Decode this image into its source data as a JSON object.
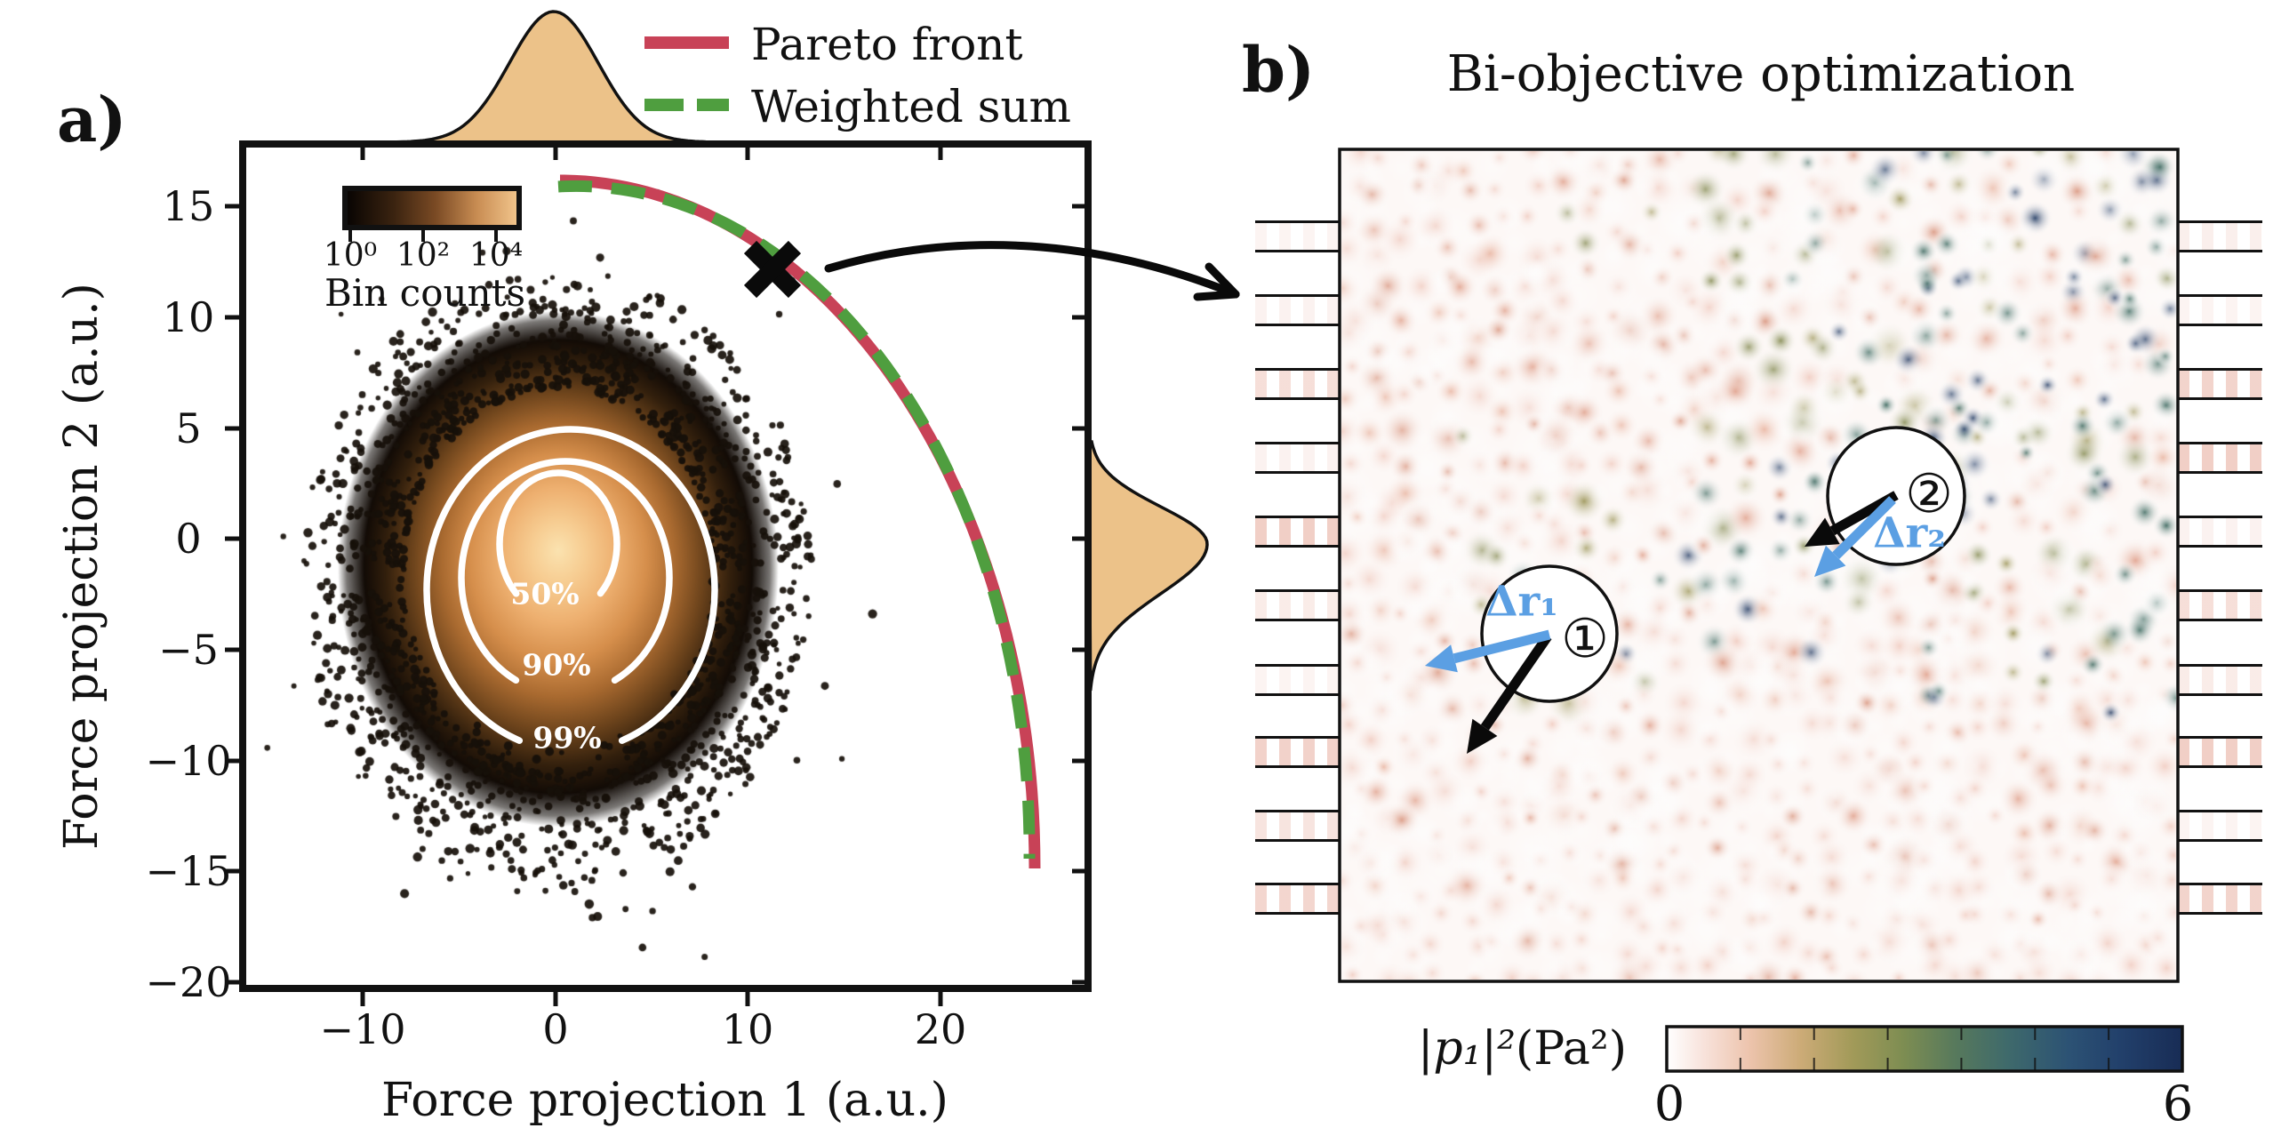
{
  "figure": {
    "panel_a": {
      "panel_label": "a)",
      "legend": {
        "items": [
          {
            "label": "Pareto front",
            "color": "#c84257",
            "style": "solid"
          },
          {
            "label": "Weighted sum",
            "color": "#4f9e3f",
            "style": "dashed"
          }
        ]
      },
      "inset_colorbar": {
        "tick_labels": [
          "10⁰",
          "10²",
          "10⁴"
        ],
        "label": "Bin counts"
      },
      "contour_labels": [
        "50%",
        "90%",
        "99%"
      ],
      "x_axis": {
        "label": "Force projection 1 (a.u.)",
        "tick_labels": [
          "−10",
          "0",
          "10",
          "20"
        ]
      },
      "y_axis": {
        "label": "Force projection 2 (a.u.)",
        "tick_labels": [
          "15",
          "10",
          "5",
          "0",
          "−5",
          "−10",
          "−15",
          "−20"
        ]
      }
    },
    "panel_b": {
      "panel_label": "b)",
      "title": "Bi-objective optimization",
      "trap_1": {
        "number": "①",
        "displacement_label": "Δr₁"
      },
      "trap_2": {
        "number": "②",
        "displacement_label": "Δr₂"
      },
      "colorbar": {
        "label_math": "|p₁|²",
        "label_unit": "(Pa²)",
        "min": "0",
        "max": "6"
      }
    },
    "colors": {
      "pareto_red": "#c84257",
      "weighted_green": "#4f9e3f",
      "marginal_tan": "#ecc289",
      "arrow_blue": "#5b9fe3",
      "contour_white": "#ffffff",
      "ink": "#111111"
    }
  },
  "chart_data": [
    {
      "type": "scatter",
      "panel": "a",
      "xlabel": "Force projection 1 (a.u.)",
      "ylabel": "Force projection 2 (a.u.)",
      "xlim": [
        -16.3,
        27.7
      ],
      "ylim": [
        -20.3,
        17.6
      ],
      "x_ticks": [
        -10,
        0,
        10,
        20
      ],
      "y_ticks": [
        15,
        10,
        5,
        0,
        -5,
        -10,
        -15,
        -20
      ],
      "grid": false,
      "legend_position": "upper center (outside axes)",
      "density_cloud": {
        "description": "log-scaled 2D histogram of force projections",
        "center": [
          0,
          -1
        ],
        "x_extent": [
          -12.5,
          12.5
        ],
        "y_extent": [
          -17,
          8.5
        ],
        "contour_levels_pct": [
          50,
          90,
          99
        ],
        "bin_count_scale": {
          "label": "Bin counts",
          "scale": "log",
          "ticks": [
            1,
            100,
            10000
          ]
        }
      },
      "series": [
        {
          "name": "Pareto front",
          "style": "solid",
          "color": "#c84257",
          "points": [
            [
              0.2,
              16.1
            ],
            [
              6.6,
              15.0
            ],
            [
              12.6,
              11.9
            ],
            [
              17.7,
              7.7
            ],
            [
              21.6,
              2.5
            ],
            [
              24.1,
              -3.9
            ],
            [
              25.0,
              -15.0
            ]
          ]
        },
        {
          "name": "Weighted sum",
          "style": "dashed",
          "color": "#4f9e3f",
          "points": [
            [
              0.2,
              15.5
            ],
            [
              6.3,
              14.4
            ],
            [
              12.0,
              11.0
            ],
            [
              16.9,
              6.9
            ],
            [
              20.7,
              1.6
            ],
            [
              23.0,
              -4.8
            ],
            [
              24.7,
              -14.5
            ]
          ]
        }
      ],
      "selected_point": {
        "marker": "X",
        "xy": [
          11.3,
          12.0
        ],
        "note": "annotated solution linked by arrow to panel b"
      },
      "marginals": {
        "top": {
          "axis": "x",
          "center": 0.0,
          "approx_sigma": 2.3,
          "fill": "#ecc289"
        },
        "right": {
          "axis": "y",
          "center": 0.3,
          "approx_sigma": 2.2,
          "fill": "#ecc289"
        }
      }
    },
    {
      "type": "heatmap",
      "panel": "b",
      "title": "Bi-objective optimization",
      "quantity": "|p1|^2 (Pa^2)",
      "colorbar": {
        "label": "|p1|^2 (Pa^2)",
        "min": 0,
        "max": 6,
        "ticks_labeled": [
          0,
          6
        ]
      },
      "traps": [
        {
          "id": 1,
          "label": "①",
          "displacement_label": "Δr₁",
          "arrows": [
            "target (black)",
            "Δr displacement (blue)"
          ]
        },
        {
          "id": 2,
          "label": "②",
          "displacement_label": "Δr₂",
          "arrows": [
            "target (black)",
            "Δr displacement (blue)"
          ]
        }
      ],
      "transducer_channels": {
        "left_count": 10,
        "right_count": 10
      }
    }
  ]
}
